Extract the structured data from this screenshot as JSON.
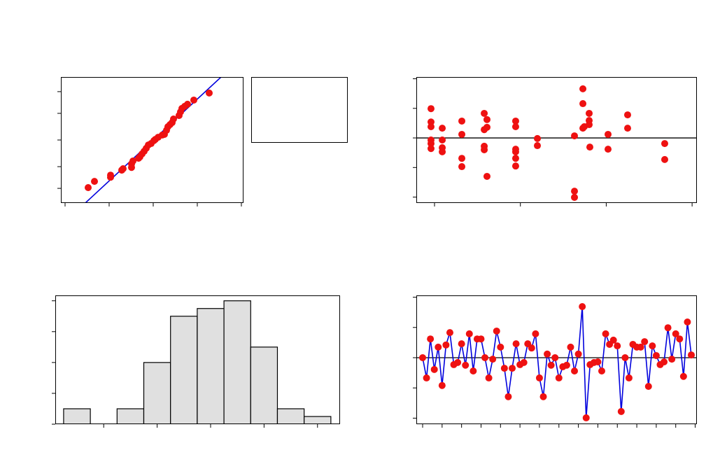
{
  "chart_data": [
    {
      "type": "probability",
      "x": [
        -1.476,
        -1.333,
        -0.968,
        -0.968,
        -0.714,
        -0.683,
        -0.492,
        -0.492,
        -0.46,
        -0.333,
        -0.302,
        -0.254,
        -0.206,
        -0.159,
        -0.111,
        -0.048,
        0.016,
        0.048,
        0.111,
        0.206,
        0.254,
        0.302,
        0.333,
        0.381,
        0.429,
        0.46,
        0.587,
        0.619,
        0.651,
        0.714,
        0.778,
        0.921,
        1.27
      ],
      "values": [
        -2.29,
        -1.99,
        -1.69,
        -1.79,
        -1.45,
        -1.38,
        -1.32,
        -1.15,
        -1.01,
        -0.88,
        -0.81,
        -0.67,
        -0.54,
        -0.4,
        -0.24,
        -0.17,
        -0.03,
        0.03,
        0.13,
        0.24,
        0.27,
        0.47,
        0.64,
        0.74,
        0.84,
        1.01,
        1.18,
        1.35,
        1.52,
        1.62,
        1.72,
        1.92,
        2.26
      ],
      "color": "#ee1111",
      "fit_line": {
        "x": [
          -1.54,
          1.54
        ],
        "y": [
          -3.03,
          3.03
        ],
        "color": "#0000dd"
      },
      "xlim": [
        -2.095,
        2.048
      ],
      "xticks": [
        -2,
        -1,
        0,
        1,
        2
      ],
      "ylim": [
        -3.03,
        3.03
      ],
      "yticks": [
        -2.326,
        -1.282,
        0,
        1.282,
        2.326
      ]
    },
    {
      "type": "scatter",
      "x": [
        -0.041,
        -0.041,
        -0.041,
        -0.041,
        -0.041,
        -0.041,
        0.09,
        0.09,
        0.09,
        0.09,
        0.318,
        0.318,
        0.318,
        0.318,
        0.579,
        0.579,
        0.579,
        0.579,
        0.611,
        0.611,
        0.611,
        0.945,
        0.945,
        0.945,
        0.945,
        0.945,
        0.945,
        1.198,
        1.198,
        1.63,
        1.63,
        1.63,
        1.728,
        1.728,
        1.728,
        1.744,
        1.801,
        1.801,
        1.801,
        1.809,
        2.021,
        2.021,
        2.249,
        2.249,
        2.681,
        2.681
      ],
      "values": [
        0.99,
        0.54,
        0.38,
        -0.07,
        -0.19,
        -0.36,
        0.33,
        -0.07,
        -0.33,
        -0.47,
        0.57,
        0.12,
        -0.69,
        -0.97,
        0.83,
        0.28,
        -0.28,
        -0.4,
        0.62,
        0.36,
        -1.3,
        0.57,
        0.38,
        -0.38,
        -0.47,
        -0.69,
        -0.95,
        -0.02,
        -0.26,
        0.07,
        -1.8,
        -2.01,
        1.66,
        1.16,
        0.33,
        0.38,
        0.83,
        0.59,
        0.45,
        -0.31,
        0.12,
        -0.38,
        0.78,
        0.33,
        -0.19,
        -0.73
      ],
      "color": "#ee1111",
      "reference_line": 0,
      "xlim": [
        -0.212,
        3.056
      ],
      "xticks": [
        0,
        1,
        2,
        3
      ],
      "ylim": [
        -2.2,
        2.06
      ],
      "yticks": [
        -2,
        -1,
        0,
        1,
        2
      ]
    },
    {
      "type": "histogram",
      "bins": [
        -1.375,
        -1.125,
        -0.875,
        -0.625,
        -0.375,
        -0.125,
        0.125,
        0.375,
        0.625,
        0.875,
        1.125
      ],
      "values": [
        2,
        0,
        2,
        8,
        14,
        15,
        16,
        10,
        2,
        1
      ],
      "color": "#e0e0e0",
      "xlim": [
        -1.453,
        1.211
      ],
      "xticks": [
        -1,
        -0.5,
        0,
        0.5,
        1
      ],
      "ylim": [
        0,
        16.7
      ],
      "yticks": [
        0,
        4,
        8,
        12,
        16
      ]
    },
    {
      "type": "line",
      "x": [
        1,
        2,
        3,
        4,
        5,
        6,
        7,
        8,
        9,
        10,
        11,
        12,
        13,
        14,
        15,
        16,
        17,
        18,
        19,
        20,
        21,
        22,
        23,
        24,
        25,
        26,
        27,
        28,
        29,
        30,
        31,
        32,
        33,
        34,
        35,
        36,
        37,
        38,
        39,
        40,
        41,
        42,
        43,
        44,
        45,
        46,
        47,
        48,
        49,
        50,
        51,
        52,
        53,
        54,
        55,
        56,
        57,
        58,
        59,
        60,
        61,
        62,
        63,
        64,
        65,
        66,
        67,
        68,
        69,
        70
      ],
      "values": [
        0,
        -0.67,
        0.62,
        -0.39,
        0.35,
        -0.92,
        0.42,
        0.83,
        -0.23,
        -0.16,
        0.46,
        -0.25,
        0.79,
        -0.44,
        0.62,
        0.62,
        0,
        -0.67,
        -0.05,
        0.88,
        0.35,
        -0.35,
        -1.29,
        -0.35,
        0.46,
        -0.23,
        -0.16,
        0.46,
        0.32,
        0.79,
        -0.67,
        -1.29,
        0.12,
        -0.25,
        0,
        -0.67,
        -0.3,
        -0.25,
        0.35,
        -0.44,
        0.12,
        1.69,
        -1.99,
        -0.23,
        -0.16,
        -0.14,
        -0.44,
        0.79,
        0.44,
        0.58,
        0.39,
        -1.78,
        0,
        -0.67,
        0.44,
        0.35,
        0.35,
        0.53,
        -0.95,
        0.39,
        0.07,
        -0.23,
        -0.14,
        0.99,
        -0.05,
        0.79,
        0.62,
        -0.62,
        1.18,
        0.09
      ],
      "color": "#ee1111",
      "line_color": "#0000dd",
      "reference_line": 0,
      "xlim": [
        -0.62,
        71.44
      ],
      "xticks": [
        1,
        6,
        11,
        16,
        21,
        26,
        31,
        36,
        41,
        46,
        51,
        56,
        61,
        66,
        71
      ],
      "ylim": [
        -2.2,
        2.06
      ],
      "yticks": [
        -2,
        -1,
        0,
        1,
        2
      ]
    }
  ]
}
